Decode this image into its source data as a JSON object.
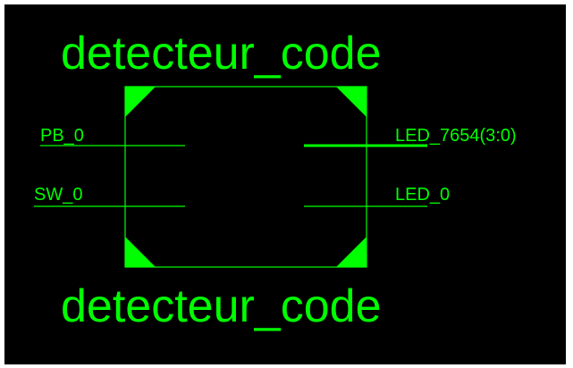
{
  "diagram": {
    "block_name_top": "detecteur_code",
    "block_name_bottom": "detecteur_code",
    "inputs": [
      {
        "name": "PB_0",
        "bus": false
      },
      {
        "name": "SW_0",
        "bus": false
      }
    ],
    "outputs": [
      {
        "name": "LED_7654(3:0)",
        "bus": true
      },
      {
        "name": "LED_0",
        "bus": false
      }
    ]
  },
  "colors": {
    "background": "#000000",
    "outer_frame": "#ffffff",
    "symbol": "#00ff00"
  }
}
